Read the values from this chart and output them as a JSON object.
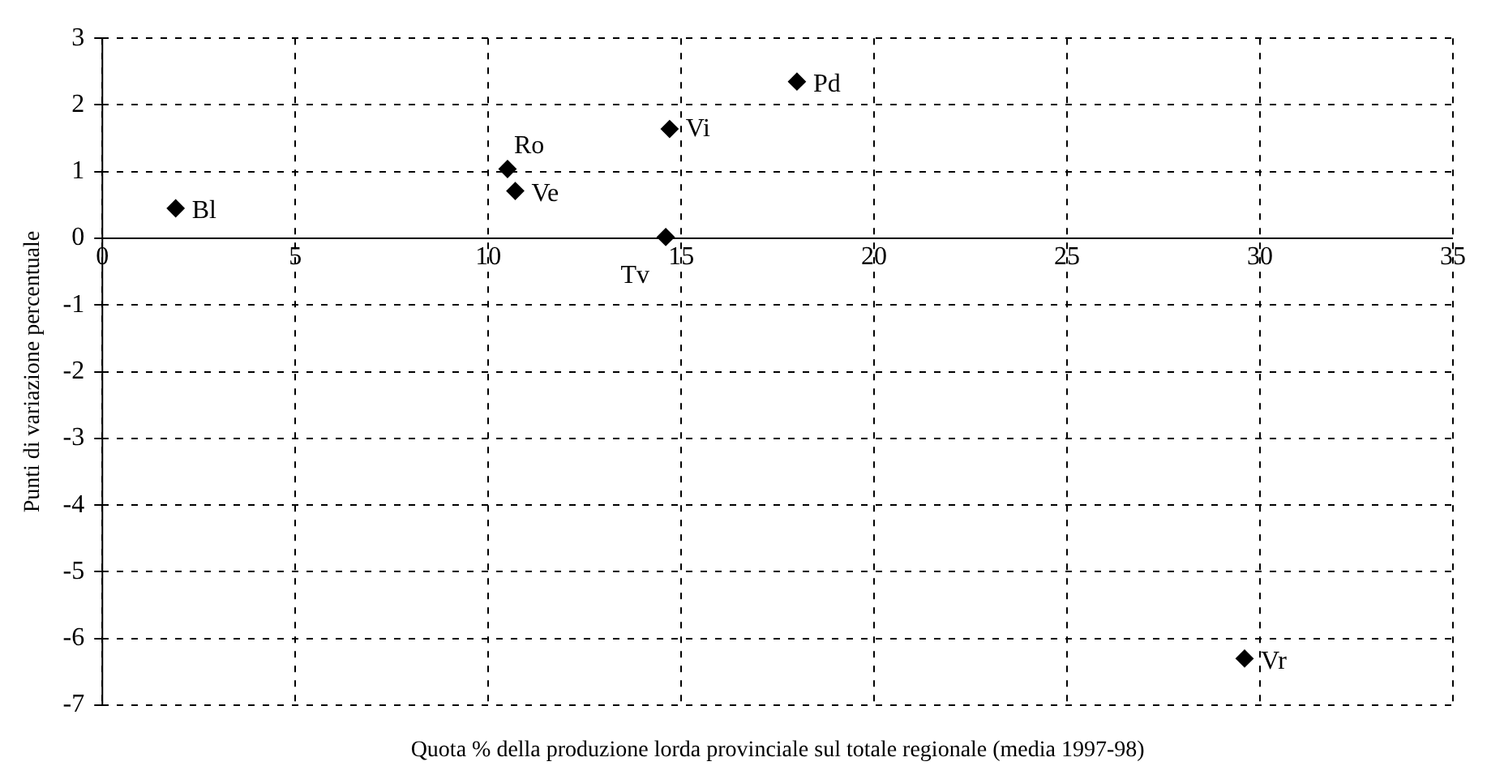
{
  "chart_data": {
    "type": "scatter",
    "xlabel": "Quota % della produzione lorda provinciale sul totale regionale (media 1997-98)",
    "ylabel": "Punti di variazione percentuale",
    "series": [
      {
        "name": "Bl",
        "color": "#000000",
        "x": [
          1.9
        ],
        "values": [
          0.45
        ]
      },
      {
        "name": "Ro",
        "color": "#000000",
        "x": [
          10.5
        ],
        "values": [
          1.04
        ]
      },
      {
        "name": "Ve",
        "color": "#000000",
        "x": [
          10.7
        ],
        "values": [
          0.71
        ]
      },
      {
        "name": "Tv",
        "color": "#000000",
        "x": [
          14.6
        ],
        "values": [
          0.02
        ]
      },
      {
        "name": "Vi",
        "color": "#000000",
        "x": [
          14.7
        ],
        "values": [
          1.64
        ]
      },
      {
        "name": "Pd",
        "color": "#000000",
        "x": [
          18.0
        ],
        "values": [
          2.35
        ]
      },
      {
        "name": "Vr",
        "color": "#000000",
        "x": [
          29.6
        ],
        "values": [
          -6.3
        ]
      }
    ],
    "xlim": [
      0,
      35
    ],
    "xticks": [
      0,
      5,
      10,
      15,
      20,
      25,
      30,
      35
    ],
    "ylim": [
      -7,
      3
    ],
    "yticks": [
      -7,
      -6,
      -5,
      -4,
      -3,
      -2,
      -1,
      0,
      1,
      2,
      3
    ],
    "grid": true,
    "legend": false,
    "marker": "diamond"
  }
}
